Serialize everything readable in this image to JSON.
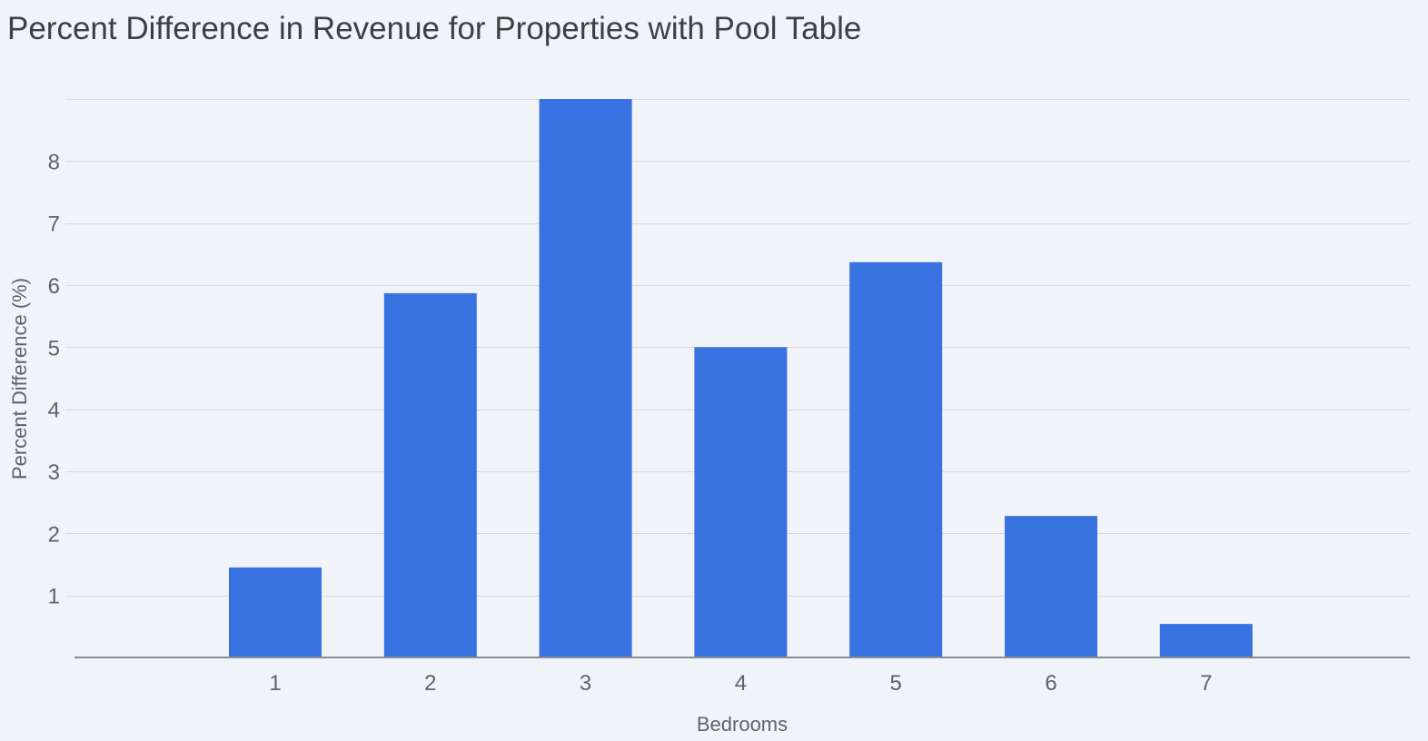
{
  "chart_data": {
    "type": "bar",
    "title": "Percent Difference in Revenue for Properties with Pool Table",
    "xlabel": "Bedrooms",
    "ylabel": "Percent Difference (%)",
    "categories": [
      "1",
      "2",
      "3",
      "4",
      "5",
      "6",
      "7"
    ],
    "values": [
      1.45,
      5.87,
      9.0,
      5.0,
      6.37,
      2.28,
      0.54
    ],
    "ylim": [
      0,
      9
    ],
    "yticks": [
      1,
      2,
      3,
      4,
      5,
      6,
      7,
      8
    ],
    "grid": true,
    "bar_color": "#3871e0"
  }
}
